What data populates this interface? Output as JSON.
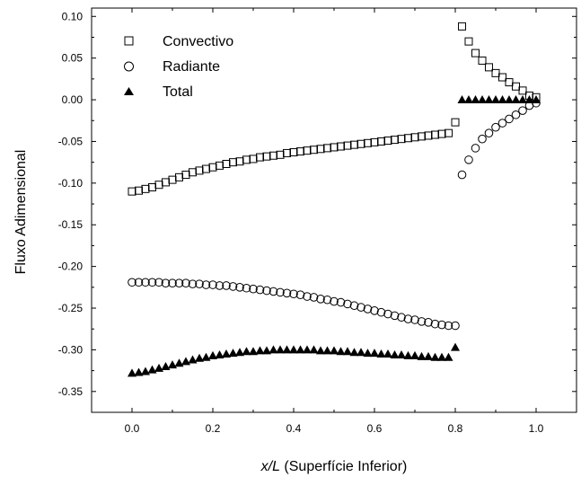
{
  "chart_data": {
    "type": "scatter",
    "xlabel_italic": "x/L",
    "xlabel_rest": " (Superfície Inferior)",
    "ylabel": "Fluxo Adimensional",
    "xlim": [
      -0.1,
      1.1
    ],
    "ylim": [
      -0.375,
      0.11
    ],
    "x_ticks": [
      "0.0",
      "0.2",
      "0.4",
      "0.6",
      "0.8",
      "1.0"
    ],
    "x_tick_values": [
      0.0,
      0.2,
      0.4,
      0.6,
      0.8,
      1.0
    ],
    "y_ticks": [
      "0.10",
      "0.05",
      "0.00",
      "-0.05",
      "-0.10",
      "-0.15",
      "-0.20",
      "-0.25",
      "-0.30",
      "-0.35"
    ],
    "y_tick_values": [
      0.1,
      0.05,
      0.0,
      -0.05,
      -0.1,
      -0.15,
      -0.2,
      -0.25,
      -0.3,
      -0.35
    ],
    "grid": false,
    "legend_position": "top-left",
    "series": [
      {
        "name": "Convectivo",
        "marker": "open-square",
        "color": "#000000",
        "segments": [
          {
            "x": [
              0.0,
              0.0167,
              0.0333,
              0.05,
              0.0667,
              0.0833,
              0.1,
              0.1167,
              0.1333,
              0.15,
              0.1667,
              0.1833,
              0.2,
              0.2167,
              0.2333,
              0.25,
              0.2667,
              0.2833,
              0.3,
              0.3167,
              0.3333,
              0.35,
              0.3667,
              0.3833,
              0.4,
              0.4167,
              0.4333,
              0.45,
              0.4667,
              0.4833,
              0.5,
              0.5167,
              0.5333,
              0.55,
              0.5667,
              0.5833,
              0.6,
              0.6167,
              0.6333,
              0.65,
              0.6667,
              0.6833,
              0.7,
              0.7167,
              0.7333,
              0.75,
              0.7667,
              0.7833
            ],
            "y": [
              -0.11,
              -0.109,
              -0.107,
              -0.105,
              -0.102,
              -0.099,
              -0.096,
              -0.093,
              -0.09,
              -0.087,
              -0.085,
              -0.083,
              -0.081,
              -0.079,
              -0.077,
              -0.075,
              -0.074,
              -0.072,
              -0.071,
              -0.069,
              -0.068,
              -0.067,
              -0.066,
              -0.064,
              -0.063,
              -0.062,
              -0.061,
              -0.06,
              -0.059,
              -0.058,
              -0.057,
              -0.056,
              -0.055,
              -0.054,
              -0.053,
              -0.052,
              -0.051,
              -0.05,
              -0.049,
              -0.048,
              -0.047,
              -0.046,
              -0.045,
              -0.044,
              -0.043,
              -0.042,
              -0.041,
              -0.04
            ]
          },
          {
            "x": [
              0.8,
              0.8167,
              0.8333,
              0.85,
              0.8667,
              0.8833,
              0.9,
              0.9167,
              0.9333,
              0.95,
              0.9667,
              0.9833,
              1.0
            ],
            "y": [
              -0.027,
              0.088,
              0.07,
              0.056,
              0.047,
              0.039,
              0.032,
              0.027,
              0.021,
              0.016,
              0.011,
              0.005,
              0.003
            ]
          }
        ]
      },
      {
        "name": "Radiante",
        "marker": "open-circle",
        "color": "#000000",
        "segments": [
          {
            "x": [
              0.0,
              0.0167,
              0.0333,
              0.05,
              0.0667,
              0.0833,
              0.1,
              0.1167,
              0.1333,
              0.15,
              0.1667,
              0.1833,
              0.2,
              0.2167,
              0.2333,
              0.25,
              0.2667,
              0.2833,
              0.3,
              0.3167,
              0.3333,
              0.35,
              0.3667,
              0.3833,
              0.4,
              0.4167,
              0.4333,
              0.45,
              0.4667,
              0.4833,
              0.5,
              0.5167,
              0.5333,
              0.55,
              0.5667,
              0.5833,
              0.6,
              0.6167,
              0.6333,
              0.65,
              0.6667,
              0.6833,
              0.7,
              0.7167,
              0.7333,
              0.75,
              0.7667,
              0.7833,
              0.8
            ],
            "y": [
              -0.219,
              -0.219,
              -0.219,
              -0.219,
              -0.219,
              -0.22,
              -0.22,
              -0.22,
              -0.22,
              -0.221,
              -0.221,
              -0.222,
              -0.222,
              -0.223,
              -0.223,
              -0.224,
              -0.225,
              -0.226,
              -0.227,
              -0.228,
              -0.229,
              -0.23,
              -0.231,
              -0.232,
              -0.233,
              -0.234,
              -0.236,
              -0.237,
              -0.239,
              -0.24,
              -0.242,
              -0.243,
              -0.245,
              -0.247,
              -0.249,
              -0.251,
              -0.253,
              -0.255,
              -0.257,
              -0.259,
              -0.261,
              -0.263,
              -0.264,
              -0.266,
              -0.267,
              -0.269,
              -0.27,
              -0.271,
              -0.271
            ]
          },
          {
            "x": [
              0.8167,
              0.8333,
              0.85,
              0.8667,
              0.8833,
              0.9,
              0.9167,
              0.9333,
              0.95,
              0.9667,
              0.9833,
              1.0
            ],
            "y": [
              -0.09,
              -0.072,
              -0.058,
              -0.047,
              -0.04,
              -0.033,
              -0.028,
              -0.023,
              -0.018,
              -0.013,
              -0.007,
              -0.004
            ]
          }
        ]
      },
      {
        "name": "Total",
        "marker": "filled-triangle",
        "color": "#000000",
        "segments": [
          {
            "x": [
              0.0,
              0.0167,
              0.0333,
              0.05,
              0.0667,
              0.0833,
              0.1,
              0.1167,
              0.1333,
              0.15,
              0.1667,
              0.1833,
              0.2,
              0.2167,
              0.2333,
              0.25,
              0.2667,
              0.2833,
              0.3,
              0.3167,
              0.3333,
              0.35,
              0.3667,
              0.3833,
              0.4,
              0.4167,
              0.4333,
              0.45,
              0.4667,
              0.4833,
              0.5,
              0.5167,
              0.5333,
              0.55,
              0.5667,
              0.5833,
              0.6,
              0.6167,
              0.6333,
              0.65,
              0.6667,
              0.6833,
              0.7,
              0.7167,
              0.7333,
              0.75,
              0.7667,
              0.7833,
              0.8
            ],
            "y": [
              -0.328,
              -0.327,
              -0.326,
              -0.324,
              -0.322,
              -0.32,
              -0.318,
              -0.316,
              -0.314,
              -0.312,
              -0.31,
              -0.309,
              -0.307,
              -0.306,
              -0.305,
              -0.304,
              -0.303,
              -0.302,
              -0.302,
              -0.301,
              -0.301,
              -0.3,
              -0.3,
              -0.3,
              -0.3,
              -0.3,
              -0.3,
              -0.3,
              -0.301,
              -0.301,
              -0.301,
              -0.302,
              -0.302,
              -0.303,
              -0.303,
              -0.304,
              -0.304,
              -0.305,
              -0.305,
              -0.306,
              -0.306,
              -0.307,
              -0.307,
              -0.308,
              -0.308,
              -0.309,
              -0.309,
              -0.309,
              -0.297
            ]
          },
          {
            "x": [
              0.8167,
              0.8333,
              0.85,
              0.8667,
              0.8833,
              0.9,
              0.9167,
              0.9333,
              0.95,
              0.9667,
              0.9833,
              1.0
            ],
            "y": [
              0.0,
              0.0,
              0.0,
              0.0,
              0.0,
              0.0,
              0.0,
              0.0,
              0.0,
              0.0,
              0.0,
              0.0
            ]
          }
        ]
      }
    ]
  }
}
